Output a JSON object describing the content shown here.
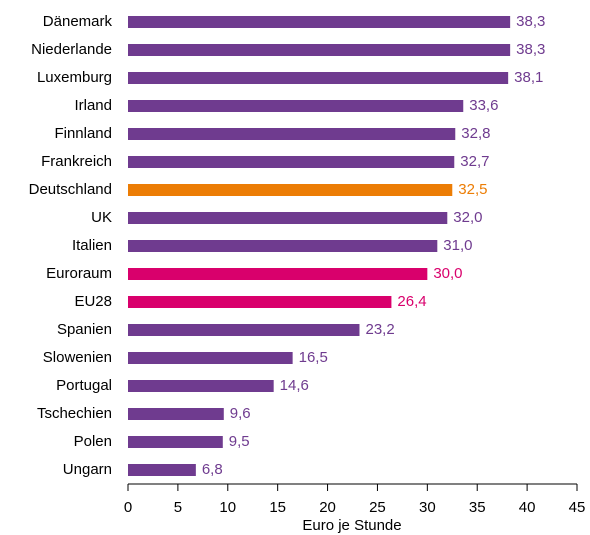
{
  "chart_data": {
    "type": "bar",
    "orientation": "horizontal",
    "categories": [
      "Dänemark",
      "Niederlande",
      "Luxemburg",
      "Irland",
      "Finnland",
      "Frankreich",
      "Deutschland",
      "UK",
      "Italien",
      "Euroraum",
      "EU28",
      "Spanien",
      "Slowenien",
      "Portugal",
      "Tschechien",
      "Polen",
      "Ungarn"
    ],
    "values": [
      38.3,
      38.3,
      38.1,
      33.6,
      32.8,
      32.7,
      32.5,
      32.0,
      31.0,
      30.0,
      26.4,
      23.2,
      16.5,
      14.6,
      9.6,
      9.5,
      6.8
    ],
    "value_labels": [
      "38,3",
      "38,3",
      "38,1",
      "33,6",
      "32,8",
      "32,7",
      "32,5",
      "32,0",
      "31,0",
      "30,0",
      "26,4",
      "23,2",
      "16,5",
      "14,6",
      "9,6",
      "9,5",
      "6,8"
    ],
    "colors": [
      "#6f3b8f",
      "#6f3b8f",
      "#6f3b8f",
      "#6f3b8f",
      "#6f3b8f",
      "#6f3b8f",
      "#ec7d05",
      "#6f3b8f",
      "#6f3b8f",
      "#d9006c",
      "#d9006c",
      "#6f3b8f",
      "#6f3b8f",
      "#6f3b8f",
      "#6f3b8f",
      "#6f3b8f",
      "#6f3b8f"
    ],
    "x_label": "Euro je Stunde",
    "xlim": [
      0,
      45
    ],
    "xticks": [
      0,
      5,
      10,
      15,
      20,
      25,
      30,
      35,
      40,
      45
    ]
  }
}
